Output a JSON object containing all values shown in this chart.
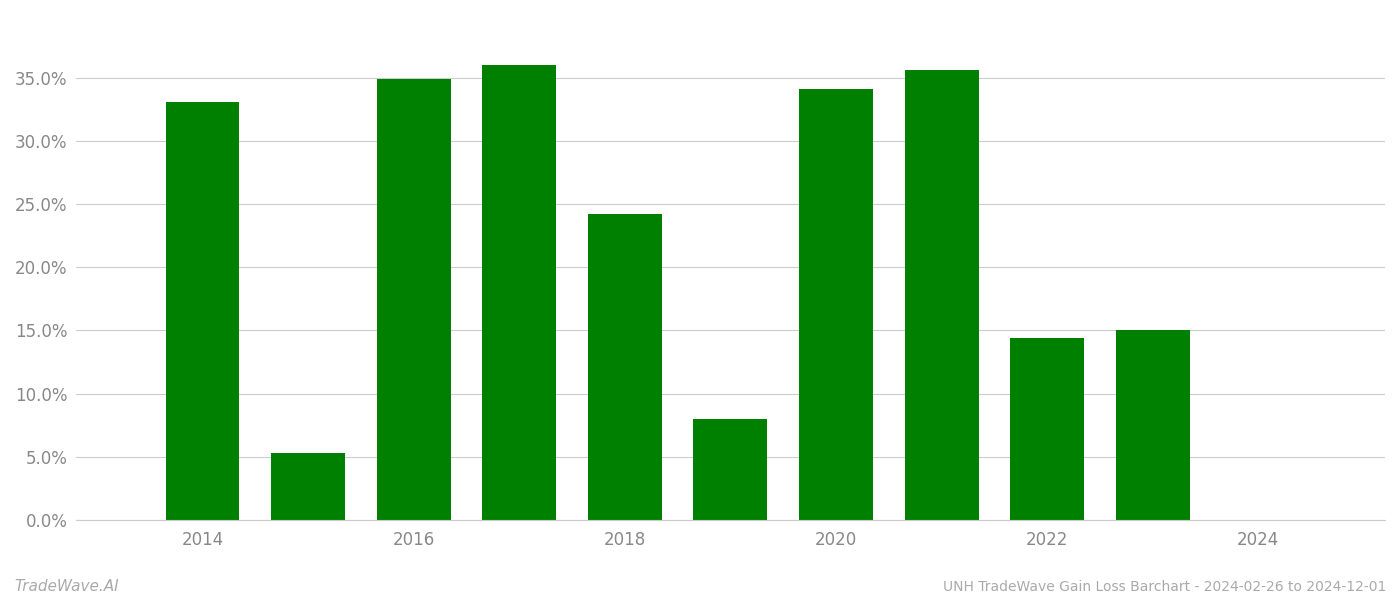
{
  "years": [
    2014,
    2015,
    2016,
    2017,
    2018,
    2019,
    2020,
    2021,
    2022,
    2023
  ],
  "values": [
    0.331,
    0.053,
    0.349,
    0.36,
    0.242,
    0.08,
    0.341,
    0.356,
    0.144,
    0.15
  ],
  "bar_color": "#008000",
  "background_color": "#ffffff",
  "grid_color": "#cccccc",
  "title_text": "UNH TradeWave Gain Loss Barchart - 2024-02-26 to 2024-12-01",
  "watermark_text": "TradeWave.AI",
  "watermark_color": "#aaaaaa",
  "title_color": "#aaaaaa",
  "ylim": [
    0.0,
    0.395
  ],
  "yticks": [
    0.0,
    0.05,
    0.1,
    0.15,
    0.2,
    0.25,
    0.3,
    0.35
  ],
  "xticks": [
    2014,
    2016,
    2018,
    2020,
    2022,
    2024
  ],
  "xlim": [
    2012.8,
    2025.2
  ],
  "xtick_color": "#888888",
  "ytick_color": "#888888",
  "bar_width": 0.7,
  "figsize": [
    14.0,
    6.0
  ],
  "dpi": 100,
  "tick_fontsize": 12
}
